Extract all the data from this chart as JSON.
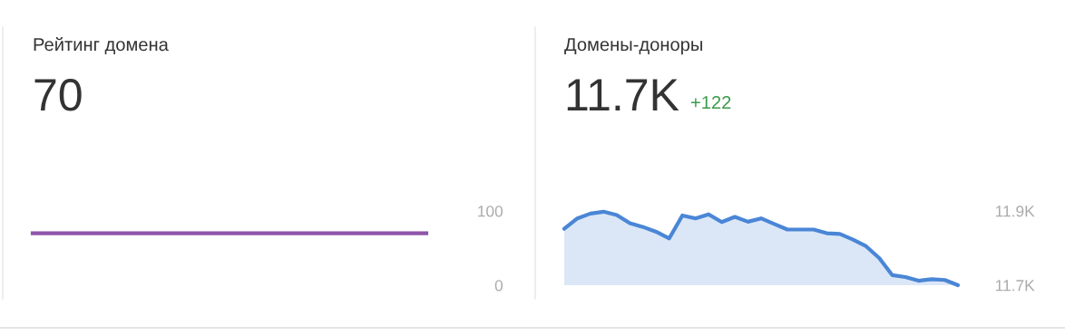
{
  "chart_data": [
    {
      "type": "line",
      "title": "Рейтинг домена",
      "subtitle": "70",
      "categories": [
        null,
        null,
        null,
        null,
        null,
        null,
        null,
        null,
        null,
        null,
        null,
        null,
        null,
        null,
        null,
        null,
        null,
        null,
        null,
        null,
        null,
        null,
        null,
        null,
        null,
        null,
        null,
        null,
        null,
        null,
        null
      ],
      "series": [
        {
          "color": "#8e55a8",
          "values": [
            70,
            70,
            70,
            70,
            70,
            70,
            70,
            70,
            70,
            70,
            70,
            70,
            70,
            70,
            70,
            70,
            70,
            70,
            70,
            70,
            70,
            70,
            70,
            70,
            70,
            70,
            70,
            70,
            70,
            70,
            70
          ]
        }
      ],
      "ylim": [
        0,
        100
      ],
      "yticks": [
        0,
        100
      ],
      "tick_labels": "y",
      "grid": false,
      "legend": false
    },
    {
      "type": "area",
      "title": "Домены-доноры",
      "subtitle": "11.7K",
      "annotations": [
        "+122"
      ],
      "categories": [
        null,
        null,
        null,
        null,
        null,
        null,
        null,
        null,
        null,
        null,
        null,
        null,
        null,
        null,
        null,
        null,
        null,
        null,
        null,
        null,
        null,
        null,
        null,
        null,
        null,
        null,
        null,
        null,
        null,
        null,
        null
      ],
      "series": [
        {
          "color": "#4a86d6",
          "values": [
            11852,
            11880,
            11893,
            11898,
            11889,
            11867,
            11857,
            11844,
            11826,
            11888,
            11880,
            11891,
            11870,
            11884,
            11871,
            11880,
            11865,
            11850,
            11850,
            11850,
            11840,
            11838,
            11823,
            11805,
            11773,
            11727,
            11722,
            11712,
            11716,
            11714,
            11700
          ]
        }
      ],
      "ylim": [
        11700,
        11900
      ],
      "yticks": [
        {
          "value": 11700,
          "label": "11.7K"
        },
        {
          "value": 11900,
          "label": "11.9K"
        }
      ],
      "tick_labels": "y",
      "grid": false,
      "legend": false
    }
  ]
}
